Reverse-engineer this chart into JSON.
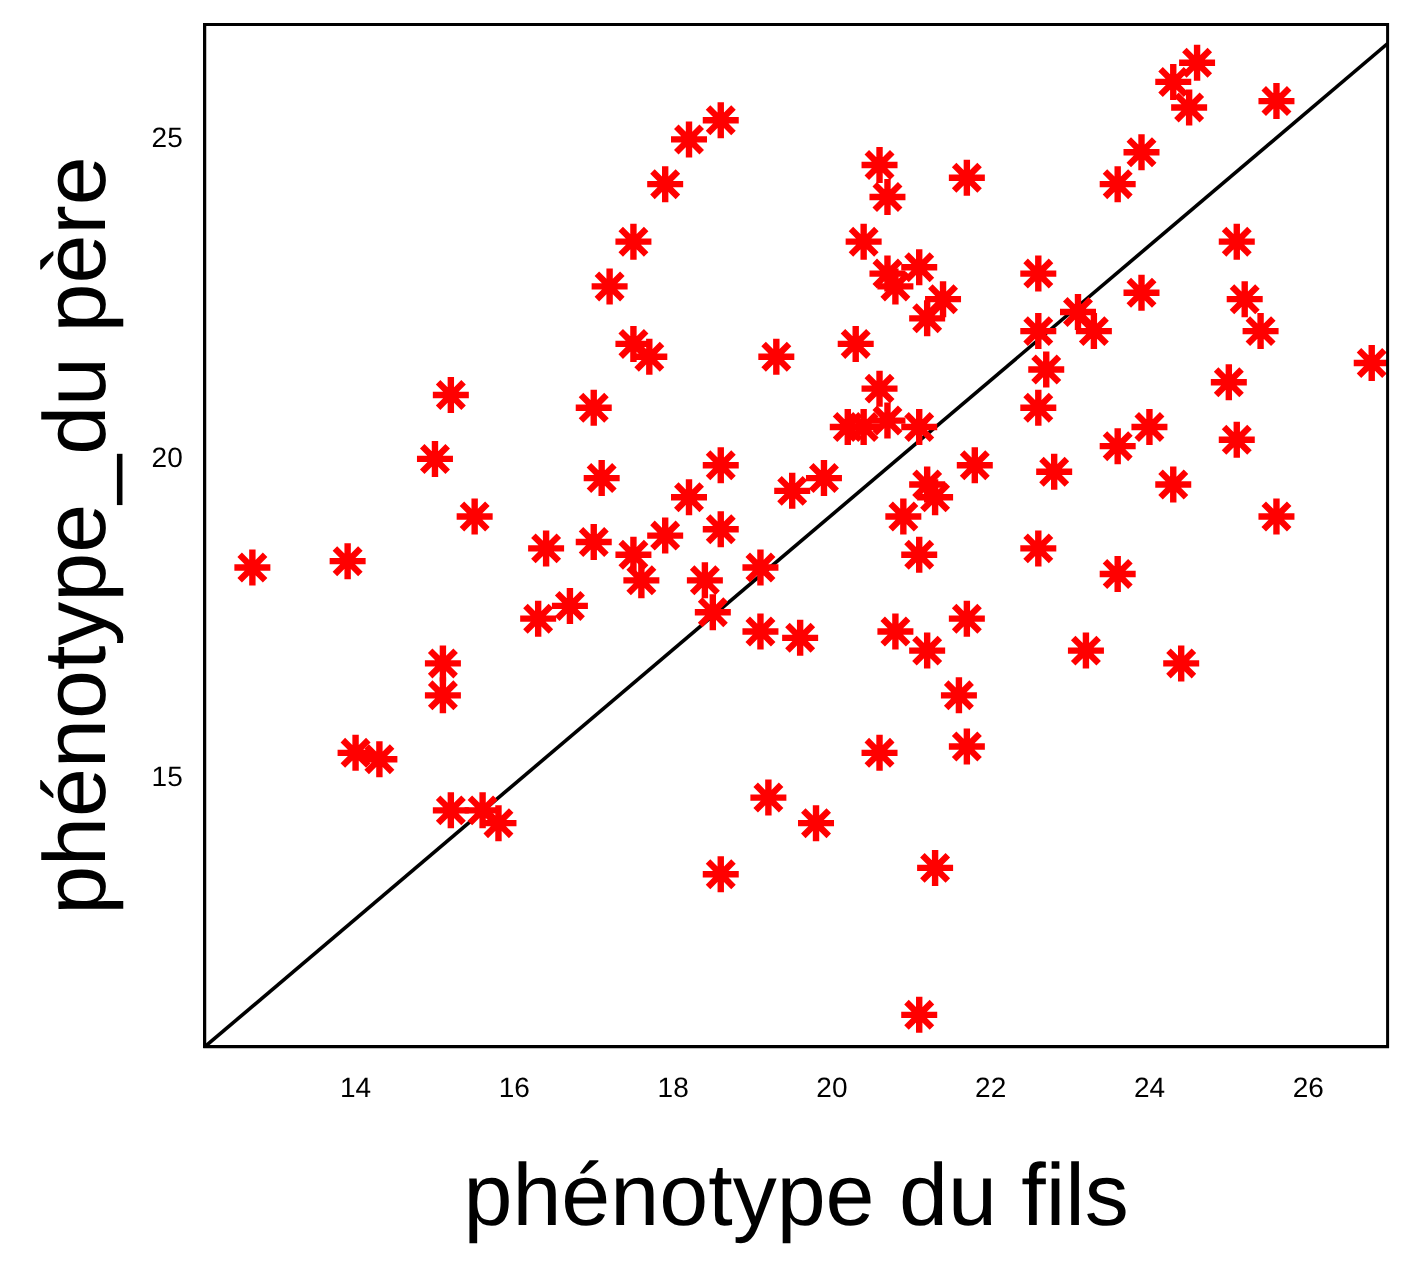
{
  "chart_data": {
    "type": "scatter",
    "xlabel": "phénotype du fils",
    "ylabel": "phénotype_du père",
    "xlim": [
      12.1,
      27.0
    ],
    "ylim": [
      10.8,
      26.8
    ],
    "xticks": [
      14,
      16,
      18,
      20,
      22,
      24,
      26
    ],
    "yticks": [
      15,
      20,
      25
    ],
    "grid": false,
    "legend": false,
    "marker": "cross",
    "series": [
      {
        "type": "scatter",
        "color": "#ff0000",
        "x": [
          24.6,
          24.3,
          24.5,
          25.6,
          23.9,
          23.6,
          20.6,
          20.7,
          21.7,
          20.4,
          20.7,
          21.1,
          20.8,
          21.4,
          21.2,
          22.6,
          25.1,
          23.9,
          25.2,
          25.4,
          26.8,
          22.6,
          23.1,
          23.3,
          20.3,
          19.3,
          22.7,
          25.0,
          20.6,
          22.6,
          20.2,
          20.4,
          20.7,
          21.1,
          19.9,
          19.5,
          21.8,
          22.8,
          23.6,
          24.0,
          25.1,
          24.3,
          21.2,
          21.3,
          20.9,
          25.6,
          18.6,
          18.2,
          17.9,
          17.5,
          17.2,
          17.5,
          17.7,
          15.2,
          17.0,
          15.0,
          17.1,
          18.6,
          18.2,
          15.5,
          12.7,
          13.9,
          16.4,
          17.0,
          17.5,
          17.9,
          18.6,
          19.1,
          17.6,
          18.4,
          18.5,
          19.6,
          16.3,
          16.7,
          15.1,
          15.1,
          14.0,
          14.3,
          15.2,
          15.6,
          15.8,
          19.2,
          18.6,
          21.1,
          22.6,
          23.6,
          20.8,
          21.2,
          21.7,
          23.2,
          24.4,
          21.6,
          20.6,
          21.7,
          19.8,
          21.3,
          21.1,
          19.1
        ],
        "values": [
          26.2,
          25.9,
          25.5,
          25.6,
          24.8,
          24.3,
          24.6,
          24.1,
          24.4,
          23.4,
          22.9,
          23.0,
          22.7,
          22.5,
          22.2,
          22.9,
          23.4,
          22.6,
          22.5,
          22.0,
          21.5,
          22.0,
          22.3,
          22.0,
          21.8,
          21.6,
          21.4,
          21.2,
          21.1,
          20.8,
          20.5,
          20.5,
          20.6,
          20.5,
          19.7,
          19.5,
          19.9,
          19.8,
          20.2,
          20.5,
          20.3,
          19.6,
          19.6,
          19.4,
          19.1,
          19.1,
          25.3,
          25.0,
          24.3,
          23.4,
          22.7,
          21.8,
          21.6,
          21.0,
          20.8,
          20.0,
          19.7,
          19.9,
          19.4,
          19.1,
          18.3,
          18.4,
          18.6,
          18.7,
          18.5,
          18.8,
          18.9,
          18.3,
          18.1,
          18.1,
          17.6,
          17.2,
          17.5,
          17.7,
          16.8,
          16.3,
          15.4,
          15.3,
          14.5,
          14.5,
          14.3,
          14.7,
          13.5,
          18.5,
          18.6,
          18.2,
          17.3,
          17.0,
          17.5,
          17.0,
          16.8,
          16.3,
          15.4,
          15.5,
          14.3,
          13.6,
          11.3,
          17.3
        ]
      },
      {
        "type": "line",
        "color": "#000000",
        "marker": "none",
        "x": [
          12.1,
          27.0
        ],
        "values": [
          10.8,
          26.5
        ]
      }
    ]
  }
}
